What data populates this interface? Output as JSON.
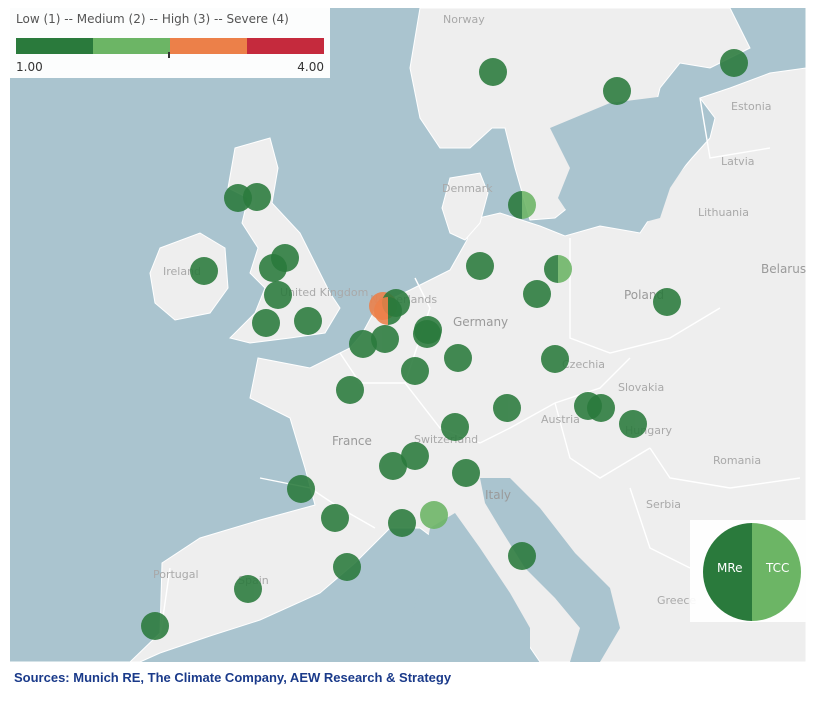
{
  "legend": {
    "title": "Low (1) -- Medium (2) -- High (3) -- Severe (4)",
    "min_label": "1.00",
    "max_label": "4.00",
    "colors": [
      "#2a7a3c",
      "#6cb565",
      "#ec8049",
      "#c52a3d"
    ]
  },
  "country_labels": [
    "Norway",
    "Estonia",
    "Latvia",
    "Lithuania",
    "Denmark",
    "Belarus",
    "Poland",
    "Ireland",
    "United Kingdom",
    "Netherlands",
    "Germany",
    "Czechia",
    "Slovakia",
    "Austria",
    "Hungary",
    "Switzerland",
    "France",
    "Romania",
    "Italy",
    "Serbia",
    "Portugal",
    "Spain",
    "Greece"
  ],
  "marker_key": {
    "left_label": "MRe",
    "right_label": "TCC",
    "left_color": "#2a7a3c",
    "right_color": "#6cb565"
  },
  "source_note": "Sources: Munich RE, The Climate Company, AEW Research & Strategy",
  "colors": {
    "sea": "#aac4cf",
    "land": "#eeeeee",
    "border": "#ffffff"
  }
}
